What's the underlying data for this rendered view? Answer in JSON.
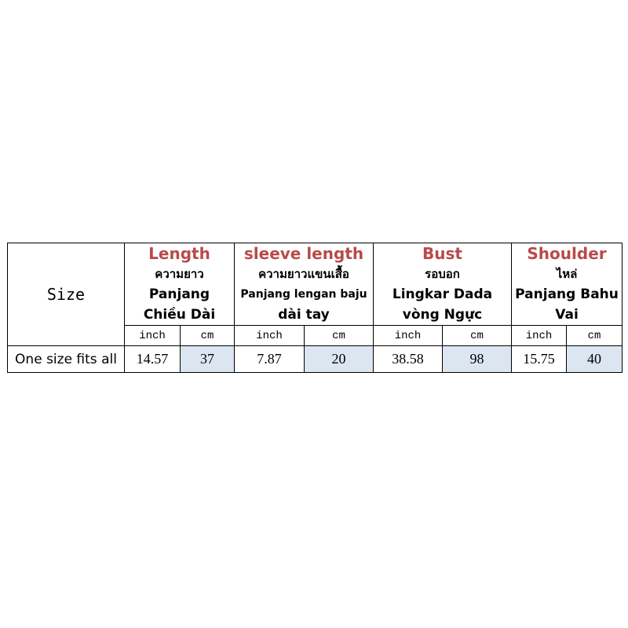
{
  "size_label": "Size",
  "columns": [
    {
      "en": "Length",
      "th": "ความยาว",
      "l1": "Panjang",
      "l2": "Chiều Dài"
    },
    {
      "en": "sleeve length",
      "th": "ความยาวแขนเสื้อ",
      "l1": "Panjang lengan baju",
      "l2": "dài tay"
    },
    {
      "en": "Bust",
      "th": "รอบอก",
      "l1": "Lingkar Dada",
      "l2": "vòng Ngực"
    },
    {
      "en": "Shoulder",
      "th": "ไหล่",
      "l1": "Panjang Bahu",
      "l2": "Vai"
    }
  ],
  "units": {
    "inch": "inch",
    "cm": "cm"
  },
  "rows": [
    {
      "label": "One size fits all",
      "values": [
        "14.57",
        "37",
        "7.87",
        "20",
        "38.58",
        "98",
        "15.75",
        "40"
      ]
    }
  ],
  "colors": {
    "header_text": "#b94a4a",
    "cm_fill": "#dce6f1"
  }
}
